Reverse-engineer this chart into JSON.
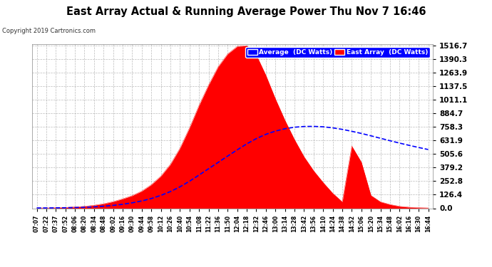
{
  "title": "East Array Actual & Running Average Power Thu Nov 7 16:46",
  "copyright": "Copyright 2019 Cartronics.com",
  "legend_labels": [
    "Average  (DC Watts)",
    "East Array  (DC Watts)"
  ],
  "ymin": 0.0,
  "ymax": 1516.7,
  "yticks": [
    0.0,
    126.4,
    252.8,
    379.2,
    505.6,
    631.9,
    758.3,
    884.7,
    1011.1,
    1137.5,
    1263.9,
    1390.3,
    1516.7
  ],
  "xtick_labels": [
    "07:07",
    "07:22",
    "07:37",
    "07:52",
    "08:06",
    "08:20",
    "08:34",
    "08:48",
    "09:02",
    "09:16",
    "09:30",
    "09:44",
    "09:58",
    "10:12",
    "10:26",
    "10:40",
    "10:54",
    "11:08",
    "11:22",
    "11:36",
    "11:50",
    "12:04",
    "12:18",
    "12:32",
    "12:46",
    "13:00",
    "13:14",
    "13:28",
    "13:42",
    "13:56",
    "14:10",
    "14:24",
    "14:38",
    "14:52",
    "15:06",
    "15:20",
    "15:34",
    "15:48",
    "16:02",
    "16:16",
    "16:30",
    "16:44"
  ],
  "east_array_values": [
    3,
    3,
    5,
    8,
    12,
    18,
    28,
    42,
    62,
    88,
    118,
    160,
    220,
    300,
    410,
    560,
    750,
    960,
    1150,
    1320,
    1440,
    1510,
    1516,
    1430,
    1240,
    1020,
    820,
    640,
    480,
    350,
    240,
    140,
    60,
    580,
    430,
    120,
    60,
    35,
    18,
    10,
    5,
    3
  ],
  "average_values": [
    3,
    3,
    4,
    5,
    7,
    9,
    13,
    19,
    27,
    37,
    51,
    68,
    91,
    120,
    156,
    200,
    252,
    310,
    369,
    428,
    487,
    545,
    601,
    650,
    690,
    720,
    742,
    756,
    763,
    764,
    760,
    750,
    736,
    718,
    698,
    676,
    653,
    630,
    608,
    587,
    567,
    548
  ],
  "bg_color": "#ffffff",
  "fill_color": "#ff0000",
  "line_color": "#0000ff",
  "grid_color": "#aaaaaa",
  "title_color": "#000000",
  "text_color": "#000000",
  "figure_bg": "#ffffff",
  "legend_avg_color": "#0000ff",
  "legend_east_color": "#ff0000"
}
